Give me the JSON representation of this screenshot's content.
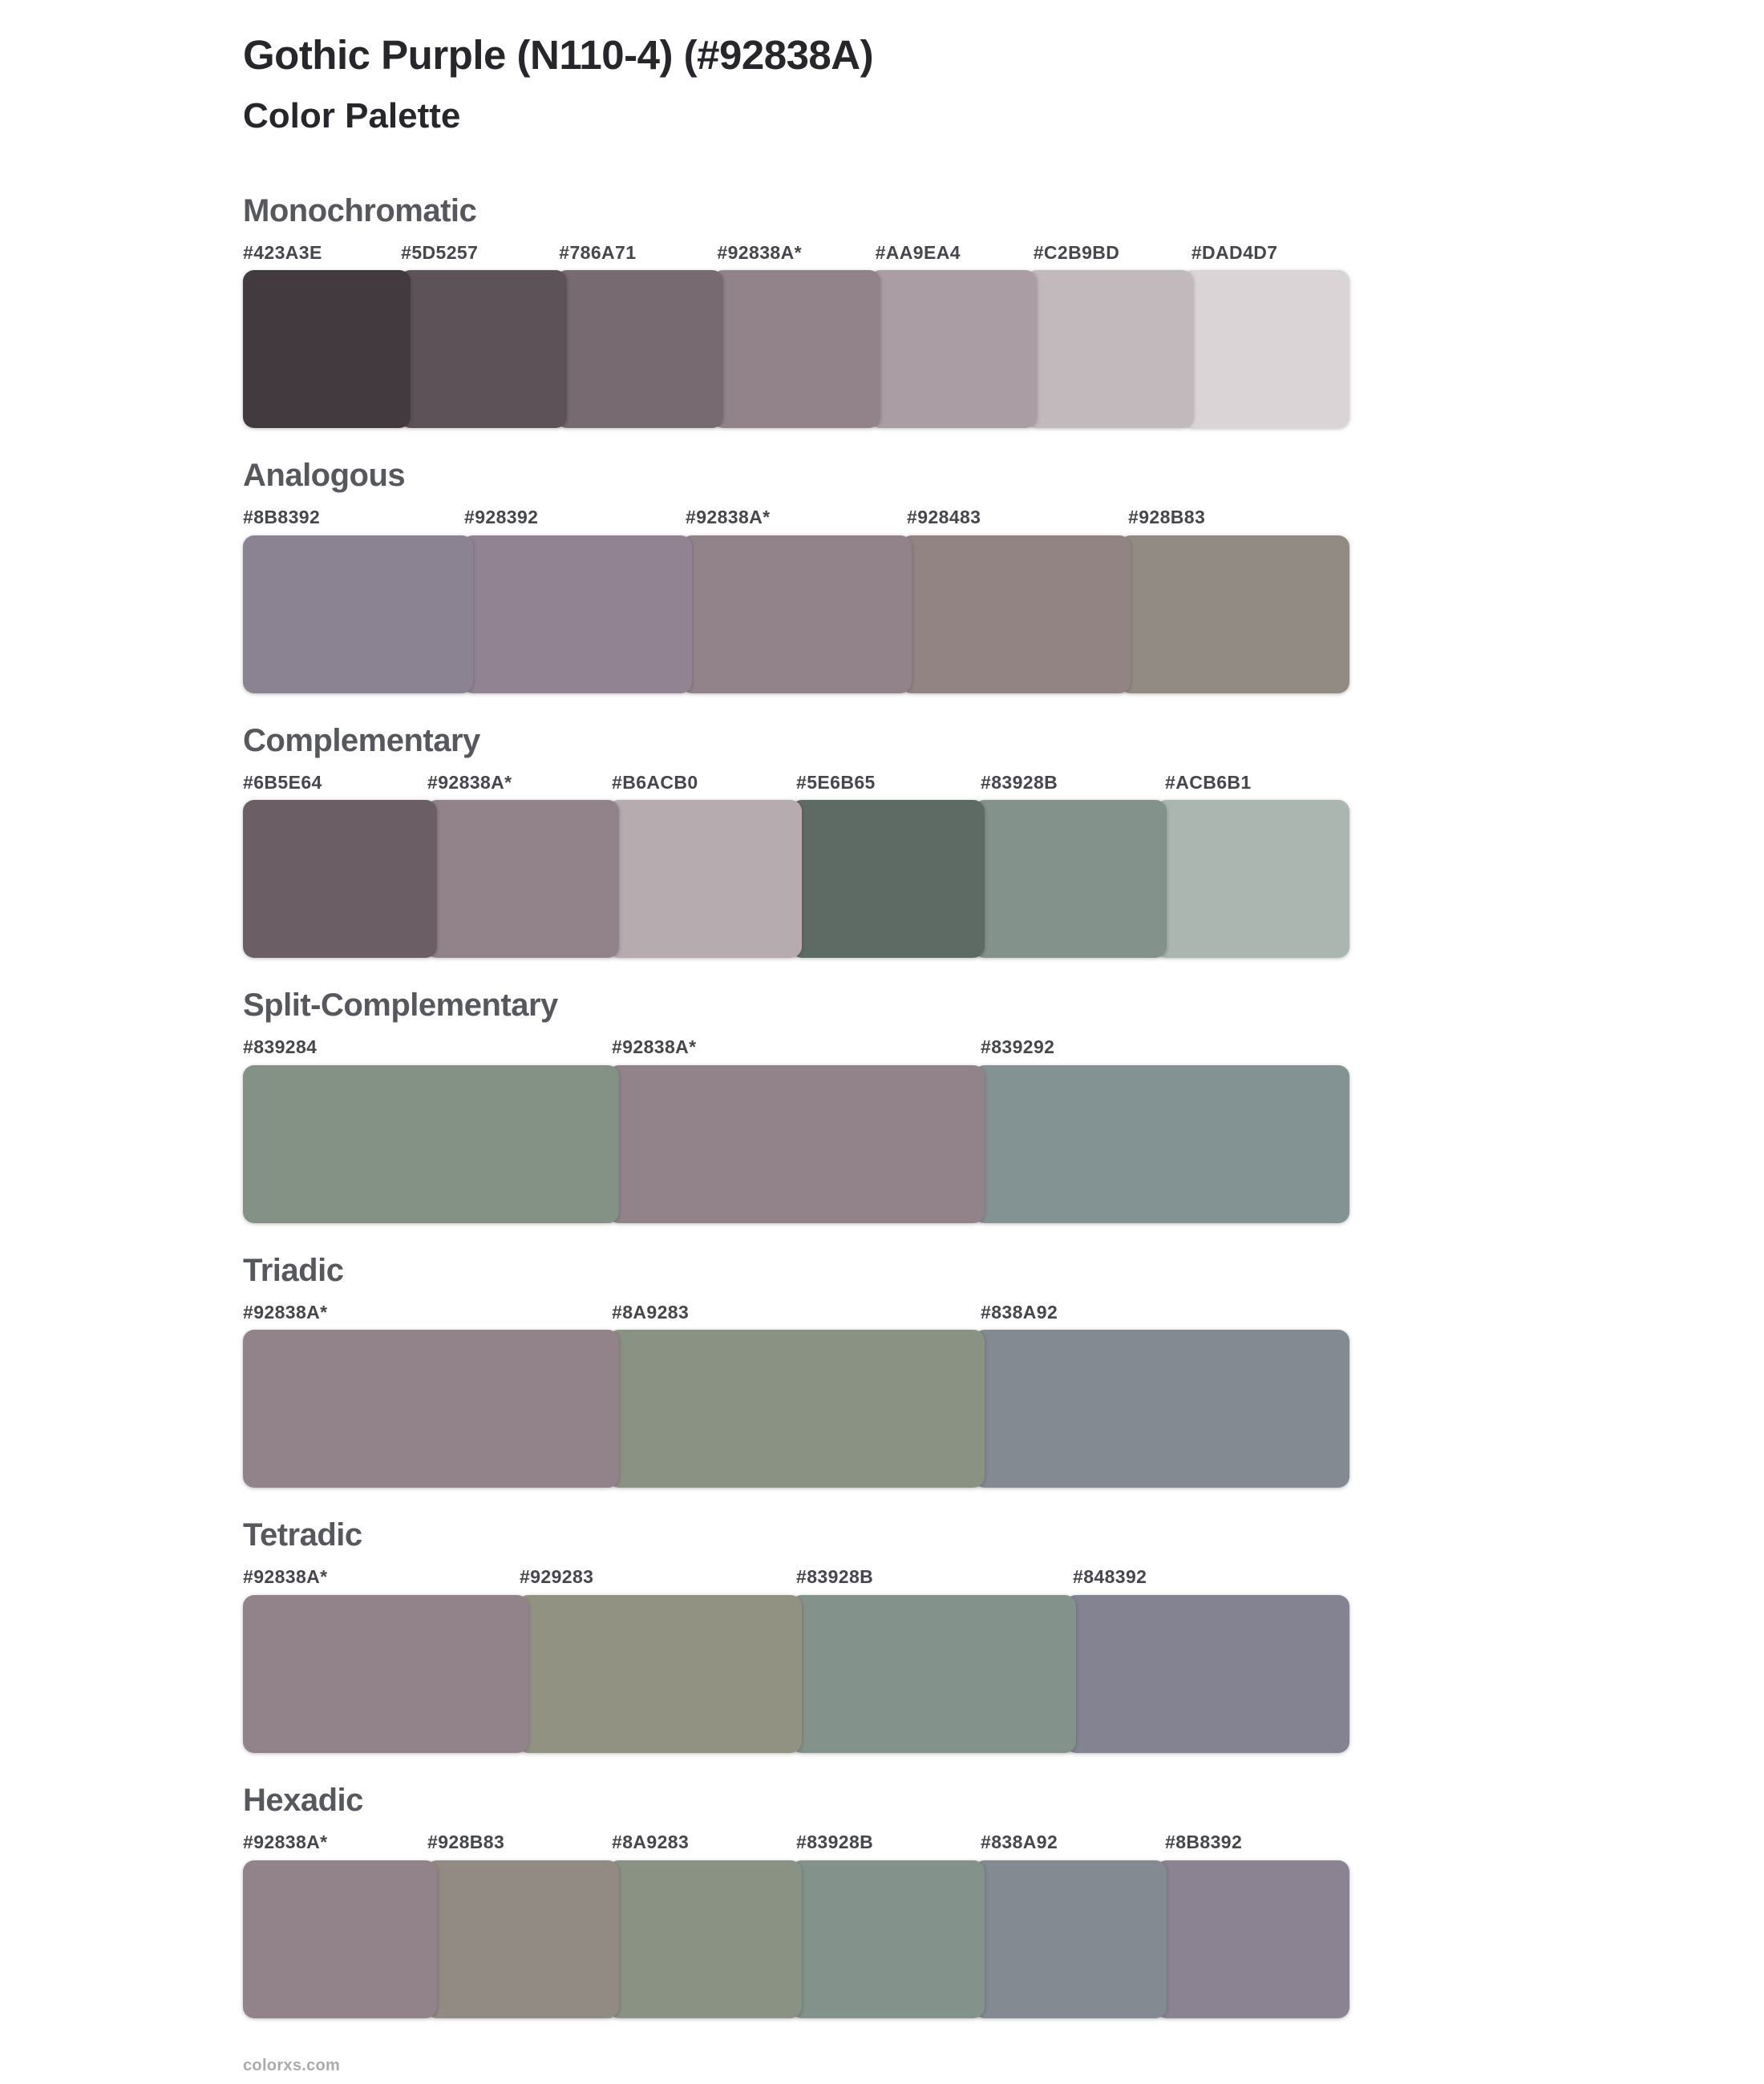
{
  "page": {
    "title": "Gothic Purple (N110-4) (#92838A)",
    "subtitle": "Color Palette",
    "footer_link": "colorxs.com"
  },
  "base_color_hex": "#92838A",
  "colors": {
    "background": "#FFFFFF",
    "title_text": "#26262B",
    "subtitle_text": "#26262B",
    "section_header_text": "#56585D",
    "hex_label_text": "#45474C",
    "footer_text": "#ABABAB"
  },
  "sections": [
    {
      "name": "Monochromatic",
      "swatches": [
        {
          "label": "#423A3E",
          "color": "#423A3E",
          "is_base": false
        },
        {
          "label": "#5D5257",
          "color": "#5D5257",
          "is_base": false
        },
        {
          "label": "#786A71",
          "color": "#786A71",
          "is_base": false
        },
        {
          "label": "#92838A*",
          "color": "#92838A",
          "is_base": true
        },
        {
          "label": "#AA9EA4",
          "color": "#AA9EA4",
          "is_base": false
        },
        {
          "label": "#C2B9BD",
          "color": "#C2B9BD",
          "is_base": false
        },
        {
          "label": "#DAD4D7",
          "color": "#DAD4D7",
          "is_base": false
        }
      ]
    },
    {
      "name": "Analogous",
      "swatches": [
        {
          "label": "#8B8392",
          "color": "#8B8392",
          "is_base": false
        },
        {
          "label": "#928392",
          "color": "#928392",
          "is_base": false
        },
        {
          "label": "#92838A*",
          "color": "#92838A",
          "is_base": true
        },
        {
          "label": "#928483",
          "color": "#928483",
          "is_base": false
        },
        {
          "label": "#928B83",
          "color": "#928B83",
          "is_base": false
        }
      ]
    },
    {
      "name": "Complementary",
      "swatches": [
        {
          "label": "#6B5E64",
          "color": "#6B5E64",
          "is_base": false
        },
        {
          "label": "#92838A*",
          "color": "#92838A",
          "is_base": true
        },
        {
          "label": "#B6ACB0",
          "color": "#B6ACB0",
          "is_base": false
        },
        {
          "label": "#5E6B65",
          "color": "#5E6B65",
          "is_base": false
        },
        {
          "label": "#83928B",
          "color": "#83928B",
          "is_base": false
        },
        {
          "label": "#ACB6B1",
          "color": "#ACB6B1",
          "is_base": false
        }
      ]
    },
    {
      "name": "Split-Complementary",
      "swatches": [
        {
          "label": "#839284",
          "color": "#839284",
          "is_base": false
        },
        {
          "label": "#92838A*",
          "color": "#92838A",
          "is_base": true
        },
        {
          "label": "#839292",
          "color": "#839292",
          "is_base": false
        }
      ]
    },
    {
      "name": "Triadic",
      "swatches": [
        {
          "label": "#92838A*",
          "color": "#92838A",
          "is_base": true
        },
        {
          "label": "#8A9283",
          "color": "#8A9283",
          "is_base": false
        },
        {
          "label": "#838A92",
          "color": "#838A92",
          "is_base": false
        }
      ]
    },
    {
      "name": "Tetradic",
      "swatches": [
        {
          "label": "#92838A*",
          "color": "#92838A",
          "is_base": true
        },
        {
          "label": "#929283",
          "color": "#929283",
          "is_base": false
        },
        {
          "label": "#83928B",
          "color": "#83928B",
          "is_base": false
        },
        {
          "label": "#848392",
          "color": "#848392",
          "is_base": false
        }
      ]
    },
    {
      "name": "Hexadic",
      "swatches": [
        {
          "label": "#92838A*",
          "color": "#92838A",
          "is_base": true
        },
        {
          "label": "#928B83",
          "color": "#928B83",
          "is_base": false
        },
        {
          "label": "#8A9283",
          "color": "#8A9283",
          "is_base": false
        },
        {
          "label": "#83928B",
          "color": "#83928B",
          "is_base": false
        },
        {
          "label": "#838A92",
          "color": "#838A92",
          "is_base": false
        },
        {
          "label": "#8B8392",
          "color": "#8B8392",
          "is_base": false
        }
      ]
    }
  ]
}
